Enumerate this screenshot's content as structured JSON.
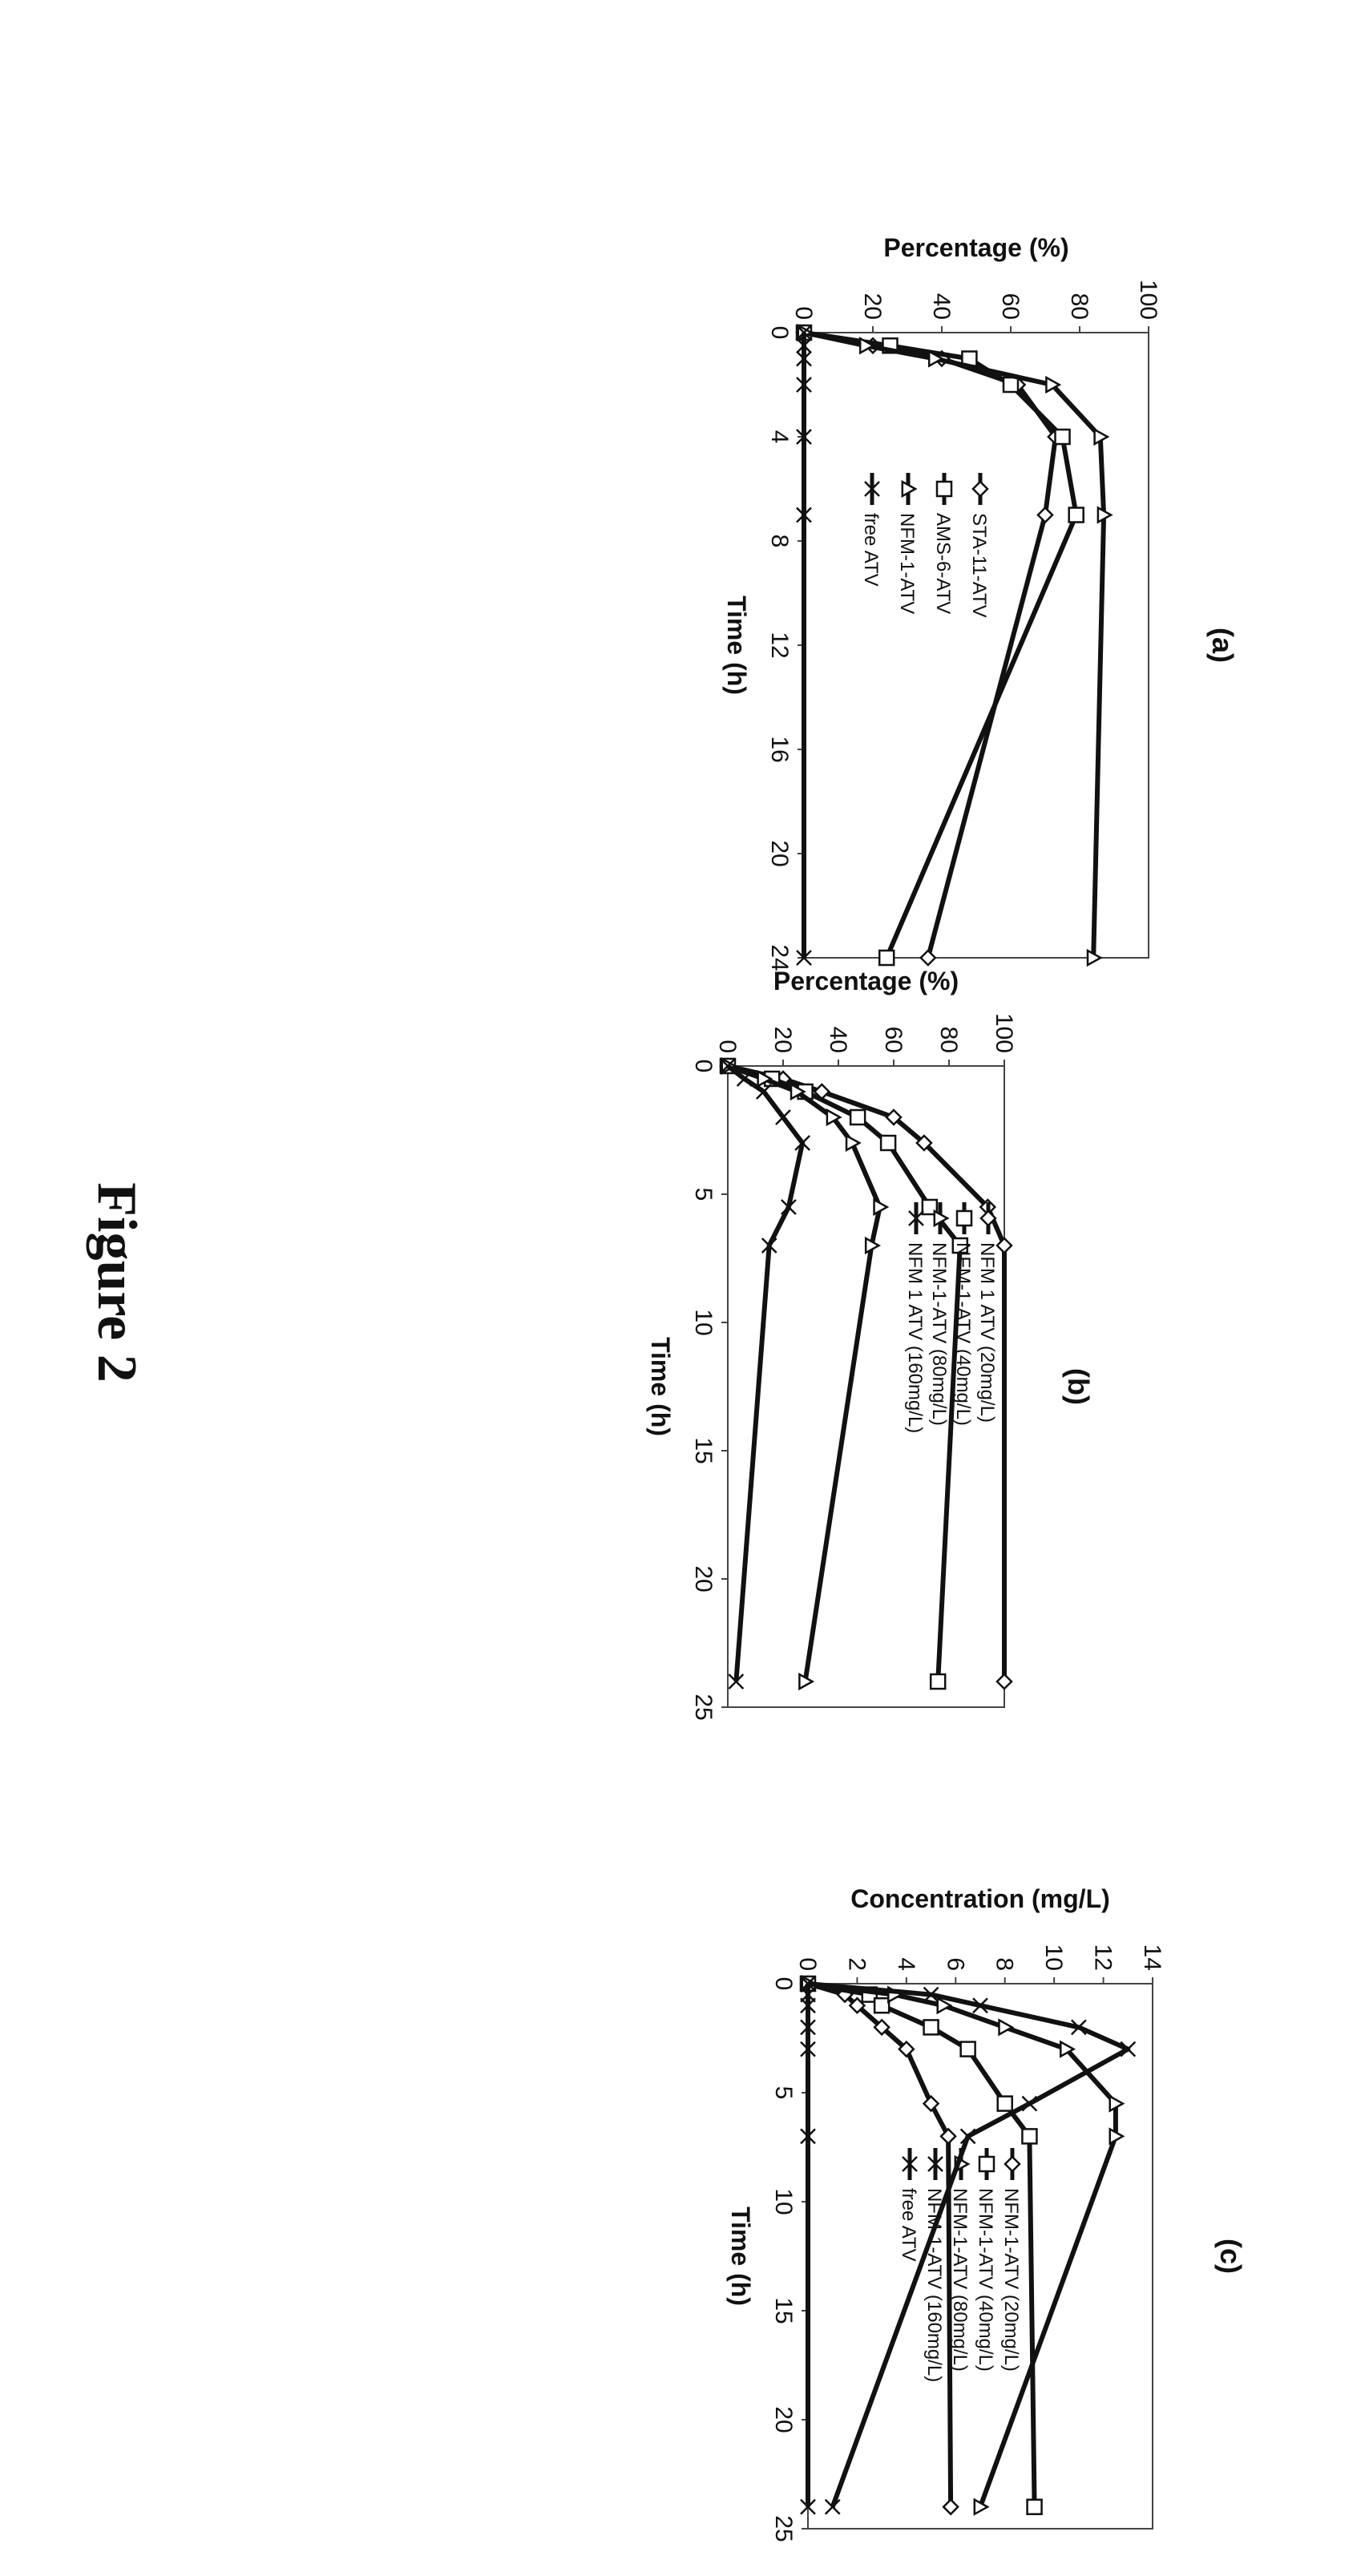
{
  "figure": {
    "caption": "Figure 2"
  },
  "chart_data": [
    {
      "type": "line",
      "panel_label": "(a)",
      "xlabel": "Time (h)",
      "ylabel": "Percentage (%)",
      "xlim": [
        0,
        24
      ],
      "ylim": [
        0,
        100
      ],
      "x_ticks": [
        "0",
        "4",
        "8",
        "12",
        "16",
        "20",
        "24"
      ],
      "y_ticks": [
        "0",
        "20",
        "40",
        "60",
        "80",
        "100"
      ],
      "grid": false,
      "legend_position": "center-left",
      "series": [
        {
          "name": "STA-11-ATV",
          "marker": "diamond",
          "x": [
            0,
            0.5,
            1,
            2,
            4,
            7,
            24
          ],
          "y": [
            0,
            20,
            40,
            62,
            73,
            70,
            36
          ]
        },
        {
          "name": "AMS-6-ATV",
          "marker": "square",
          "x": [
            0,
            0.5,
            1,
            2,
            4,
            7,
            24
          ],
          "y": [
            0,
            25,
            48,
            60,
            75,
            79,
            24
          ]
        },
        {
          "name": "NFM-1-ATV",
          "marker": "triangle",
          "x": [
            0,
            0.5,
            1,
            2,
            4,
            7,
            24
          ],
          "y": [
            0,
            18,
            38,
            72,
            86,
            87,
            84
          ]
        },
        {
          "name": "free ATV",
          "marker": "x",
          "x": [
            0,
            0.5,
            1,
            2,
            4,
            7,
            24
          ],
          "y": [
            0,
            0,
            0,
            0,
            0,
            0,
            0
          ]
        }
      ]
    },
    {
      "type": "line",
      "panel_label": "(b)",
      "xlabel": "Time (h)",
      "ylabel": "Percentage (%)",
      "xlim": [
        0,
        25
      ],
      "ylim": [
        0,
        100
      ],
      "x_ticks": [
        "0",
        "5",
        "10",
        "15",
        "20",
        "25"
      ],
      "y_ticks": [
        "0",
        "20",
        "40",
        "60",
        "80",
        "100"
      ],
      "grid": false,
      "legend_position": "center-right",
      "series": [
        {
          "name": "NFM 1 ATV (20mg/L)",
          "marker": "diamond",
          "x": [
            0,
            0.5,
            1,
            2,
            3,
            5.5,
            7,
            24
          ],
          "y": [
            0,
            20,
            34,
            60,
            71,
            94,
            100,
            100
          ]
        },
        {
          "name": "NFM-1-ATV (40mg/L)",
          "marker": "square",
          "x": [
            0,
            0.5,
            1,
            2,
            3,
            5.5,
            7,
            24
          ],
          "y": [
            0,
            16,
            28,
            47,
            58,
            73,
            84,
            76
          ]
        },
        {
          "name": "NFM-1-ATV (80mg/L)",
          "marker": "triangle",
          "x": [
            0,
            0.5,
            1,
            2,
            3,
            5.5,
            7,
            24
          ],
          "y": [
            0,
            13,
            25,
            38,
            45,
            55,
            52,
            28
          ]
        },
        {
          "name": "NFM 1 ATV (160mg/L)",
          "marker": "x",
          "x": [
            0,
            0.5,
            1,
            2,
            3,
            5.5,
            7,
            24
          ],
          "y": [
            0,
            6,
            13,
            20,
            27,
            22,
            15,
            3
          ]
        }
      ]
    },
    {
      "type": "line",
      "panel_label": "(c)",
      "xlabel": "Time (h)",
      "ylabel": "Concentration (mg/L)",
      "xlim": [
        0,
        25
      ],
      "ylim": [
        0,
        14
      ],
      "x_ticks": [
        "0",
        "5",
        "10",
        "15",
        "20",
        "25"
      ],
      "y_ticks": [
        "0",
        "2",
        "4",
        "6",
        "8",
        "10",
        "12",
        "14"
      ],
      "grid": false,
      "legend_position": "center-right",
      "series": [
        {
          "name": "NFM-1-ATV (20mg/L)",
          "marker": "diamond",
          "x": [
            0,
            0.5,
            1,
            2,
            3,
            5.5,
            7,
            24
          ],
          "y": [
            0,
            1.5,
            2,
            3,
            4,
            5,
            5.7,
            5.8
          ]
        },
        {
          "name": "NFM-1-ATV (40mg/L)",
          "marker": "square",
          "x": [
            0,
            0.5,
            1,
            2,
            3,
            5.5,
            7,
            24
          ],
          "y": [
            0,
            2.5,
            3,
            5,
            6.5,
            8,
            9,
            9.2
          ]
        },
        {
          "name": "NFM-1-ATV (80mg/L)",
          "marker": "triangle",
          "x": [
            0,
            0.5,
            1,
            2,
            3,
            5.5,
            7,
            24
          ],
          "y": [
            0,
            3.5,
            5.5,
            8,
            10.5,
            12.5,
            12.5,
            7
          ]
        },
        {
          "name": "NFM-1-ATV (160mg/L)",
          "marker": "x",
          "x": [
            0,
            0.5,
            1,
            2,
            3,
            5.5,
            7,
            24
          ],
          "y": [
            0,
            5,
            7,
            11,
            13,
            9,
            6.5,
            1
          ]
        },
        {
          "name": "free ATV",
          "marker": "x",
          "x": [
            0,
            0.5,
            1,
            2,
            3,
            7,
            24
          ],
          "y": [
            0,
            0,
            0,
            0,
            0,
            0,
            0
          ]
        }
      ]
    }
  ]
}
